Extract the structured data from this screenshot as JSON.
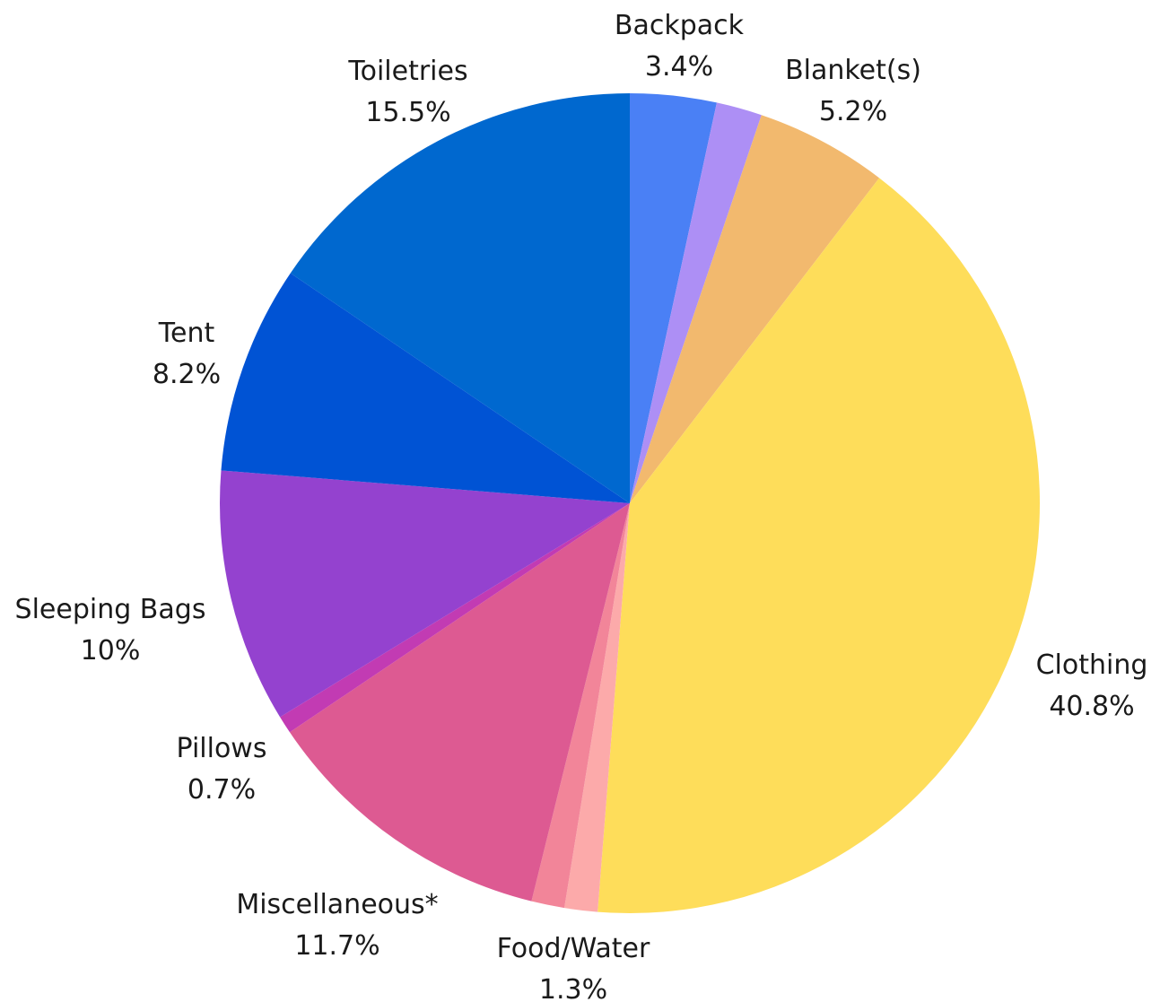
{
  "chart_data": {
    "type": "pie",
    "start": "12 o'clock",
    "direction": "clockwise",
    "slices": [
      {
        "name": "Backpack",
        "value": 3.4,
        "label": "3.4%",
        "color": "#4a80f5",
        "show_label": true
      },
      {
        "name": "",
        "value": 1.8,
        "label": "",
        "color": "#ad8ff5",
        "show_label": false
      },
      {
        "name": "Blanket(s)",
        "value": 5.2,
        "label": "5.2%",
        "color": "#f2b96e",
        "show_label": true
      },
      {
        "name": "Clothing",
        "value": 40.8,
        "label": "40.8%",
        "color": "#fedd5a",
        "show_label": true
      },
      {
        "name": "",
        "value": 1.3,
        "label": "",
        "color": "#fcaaaa",
        "show_label": false
      },
      {
        "name": "Food/Water",
        "value": 1.3,
        "label": "1.3%",
        "color": "#f28599",
        "show_label": true
      },
      {
        "name": "Miscellaneous*",
        "value": 11.7,
        "label": "11.7%",
        "color": "#dd5a92",
        "show_label": true
      },
      {
        "name": "Pillows",
        "value": 0.7,
        "label": "0.7%",
        "color": "#c23bb3",
        "show_label": true
      },
      {
        "name": "Sleeping Bags",
        "value": 10,
        "label": "10%",
        "color": "#9442cf",
        "show_label": true
      },
      {
        "name": "Tent",
        "value": 8.2,
        "label": "8.2%",
        "color": "#0053d4",
        "show_label": true
      },
      {
        "name": "Toiletries",
        "value": 15.5,
        "label": "15.5%",
        "color": "#0068cf",
        "show_label": true
      }
    ]
  }
}
